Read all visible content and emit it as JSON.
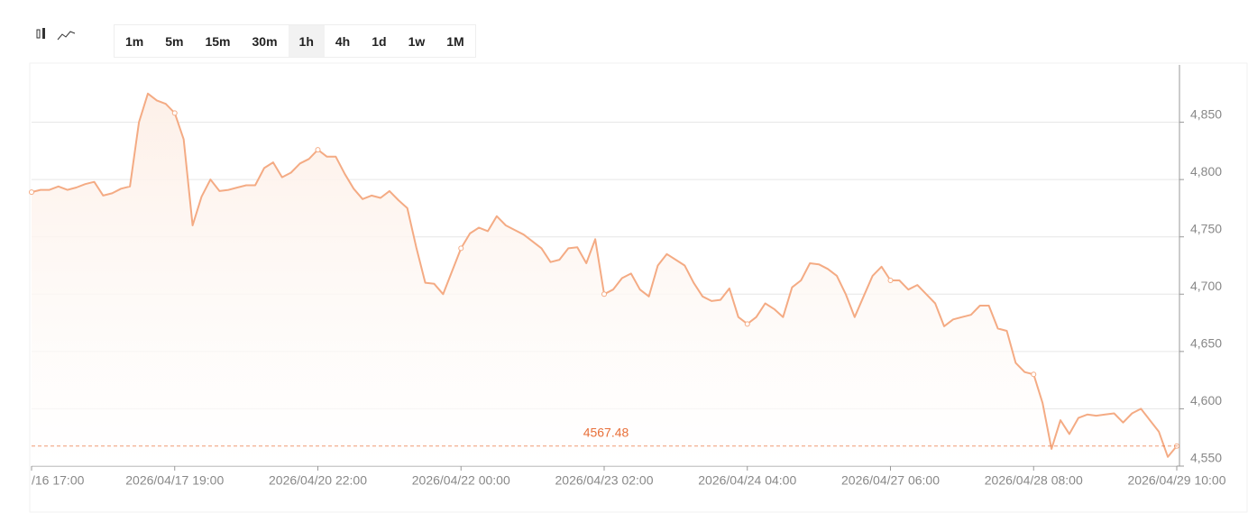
{
  "toolbar": {
    "intervals": [
      "1m",
      "5m",
      "15m",
      "30m",
      "1h",
      "4h",
      "1d",
      "1w",
      "1M"
    ],
    "active": "1h"
  },
  "chart_data": {
    "type": "line",
    "categories": [
      "/16 17:00",
      null,
      null,
      null,
      null,
      null,
      null,
      null,
      null,
      null,
      null,
      null,
      null,
      null,
      null,
      null,
      "2026/04/17 19:00",
      null,
      null,
      null,
      null,
      null,
      null,
      null,
      null,
      null,
      null,
      null,
      null,
      null,
      null,
      null,
      "2026/04/20 22:00",
      null,
      null,
      null,
      null,
      null,
      null,
      null,
      null,
      null,
      null,
      null,
      null,
      null,
      null,
      null,
      "2026/04/22 00:00",
      null,
      null,
      null,
      null,
      null,
      null,
      null,
      null,
      null,
      null,
      null,
      null,
      null,
      null,
      null,
      "2026/04/23 02:00",
      null,
      null,
      null,
      null,
      null,
      null,
      null,
      null,
      null,
      null,
      null,
      null,
      null,
      null,
      null,
      "2026/04/24 04:00",
      null,
      null,
      null,
      null,
      null,
      null,
      null,
      null,
      null,
      null,
      null,
      null,
      null,
      null,
      null,
      "2026/04/27 06:00",
      null,
      null,
      null,
      null,
      null,
      null,
      null,
      null,
      null,
      null,
      null,
      null,
      null,
      null,
      null,
      "2026/04/28 08:00",
      null,
      null,
      null,
      null,
      null,
      null,
      null,
      null,
      null,
      null,
      null,
      null,
      null,
      null,
      null,
      "2026/04/29 10:00"
    ],
    "values": [
      4789,
      4791,
      4791,
      4794,
      4791,
      4793,
      4796,
      4798,
      4786,
      4788,
      4792,
      4794,
      4850,
      4875,
      4869,
      4866,
      4858,
      4835,
      4760,
      4785,
      4800,
      4790,
      4791,
      4793,
      4795,
      4795,
      4810,
      4815,
      4802,
      4806,
      4814,
      4818,
      4826,
      4820,
      4820,
      4805,
      4792,
      4783,
      4786,
      4784,
      4790,
      4782,
      4775,
      4741,
      4710,
      4709,
      4700,
      4720,
      4740,
      4753,
      4758,
      4755,
      4768,
      4760,
      4756,
      4752,
      4746,
      4740,
      4728,
      4730,
      4740,
      4741,
      4727,
      4748,
      4700,
      4704,
      4714,
      4718,
      4704,
      4698,
      4725,
      4735,
      4730,
      4725,
      4710,
      4698,
      4694,
      4695,
      4705,
      4680,
      4674,
      4680,
      4692,
      4687,
      4680,
      4706,
      4712,
      4727,
      4726,
      4722,
      4716,
      4700,
      4680,
      4698,
      4716,
      4724,
      4712,
      4712,
      4704,
      4708,
      4700,
      4692,
      4672,
      4678,
      4680,
      4682,
      4690,
      4690,
      4670,
      4668,
      4640,
      4632,
      4630,
      4605,
      4565,
      4590,
      4578,
      4592,
      4595,
      4594,
      4595,
      4596,
      4588,
      4596,
      4600,
      4590,
      4580,
      4558,
      4567.48
    ],
    "color": "#f4ab84",
    "area_color": "#fdf0e8",
    "last_price_color": "#e8703a",
    "ylim": [
      4550,
      4900
    ],
    "yticks": [
      {
        "value": 4550,
        "label": "4,550"
      },
      {
        "value": 4600,
        "label": "4,600"
      },
      {
        "value": 4650,
        "label": "4,650"
      },
      {
        "value": 4700,
        "label": "4,700"
      },
      {
        "value": 4750,
        "label": "4,750"
      },
      {
        "value": 4800,
        "label": "4,800"
      },
      {
        "value": 4850,
        "label": "4,850"
      }
    ],
    "grid": true
  }
}
